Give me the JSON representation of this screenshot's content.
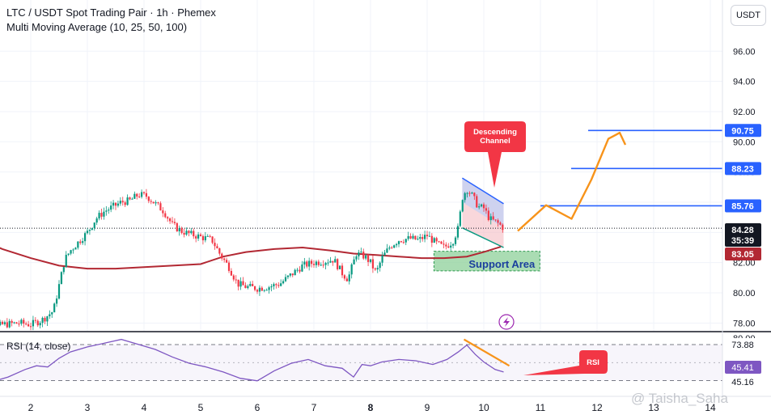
{
  "header": {
    "title": "LTC / USDT Spot Trading Pair · 1h · Phemex",
    "indicator": "Multi Moving Average (10, 25, 50, 100)"
  },
  "currency_button": "USDT",
  "annotations": {
    "descending_channel": "Descending\nChannel",
    "support_area": "Support Area",
    "rsi_callout": "RSI",
    "watermark": "@ Taisha_Saha"
  },
  "price_badges": [
    {
      "value": "90.75",
      "color": "#2962ff"
    },
    {
      "value": "88.23",
      "color": "#2962ff"
    },
    {
      "value": "85.76",
      "color": "#2962ff"
    },
    {
      "value": "84.28",
      "color": "#131722"
    },
    {
      "value": "35:39",
      "color": "#131722"
    },
    {
      "value": "83.05",
      "color": "#b22833"
    }
  ],
  "rsi": {
    "label": "RSI (14, close)",
    "badges": [
      {
        "value": "73.88",
        "color": "#ffffff",
        "text_color": "#131722"
      },
      {
        "value": "45.41",
        "color": "#7e57c2",
        "text_color": "#ffffff"
      },
      {
        "value": "45.16",
        "color": "#ffffff",
        "text_color": "#131722"
      }
    ],
    "cut_tick": "80.00"
  },
  "chart_data": {
    "type": "candlestick",
    "y_ticks": [
      "78.00",
      "80.00",
      "82.00",
      "84.00",
      "86.00",
      "88.00",
      "90.00",
      "92.00",
      "94.00",
      "96.00"
    ],
    "x_ticks": [
      "2",
      "3",
      "4",
      "5",
      "6",
      "7",
      "8",
      "9",
      "10",
      "11",
      "12",
      "13",
      "14"
    ],
    "horizontal_levels": [
      90.75,
      88.23,
      85.76
    ],
    "current_price": 84.28,
    "ma_value": 83.05,
    "price_path": [
      [
        1.0,
        77.7
      ],
      [
        1.3,
        77.6
      ],
      [
        1.5,
        77.9
      ],
      [
        1.8,
        78.0
      ],
      [
        2.0,
        77.9
      ],
      [
        2.2,
        78.2
      ],
      [
        2.4,
        78.8
      ],
      [
        2.5,
        80.5
      ],
      [
        2.6,
        82.2
      ],
      [
        2.7,
        82.8
      ],
      [
        2.85,
        83.4
      ],
      [
        3.0,
        84.0
      ],
      [
        3.15,
        84.9
      ],
      [
        3.3,
        85.4
      ],
      [
        3.45,
        85.7
      ],
      [
        3.6,
        86.0
      ],
      [
        3.75,
        86.1
      ],
      [
        3.9,
        86.5
      ],
      [
        4.05,
        86.4
      ],
      [
        4.2,
        85.9
      ],
      [
        4.35,
        85.4
      ],
      [
        4.5,
        84.5
      ],
      [
        4.65,
        84.1
      ],
      [
        4.8,
        83.9
      ],
      [
        5.0,
        83.7
      ],
      [
        5.2,
        83.5
      ],
      [
        5.35,
        82.5
      ],
      [
        5.5,
        81.7
      ],
      [
        5.65,
        80.6
      ],
      [
        5.8,
        80.4
      ],
      [
        6.0,
        80.3
      ],
      [
        6.2,
        80.4
      ],
      [
        6.4,
        80.6
      ],
      [
        6.6,
        81.2
      ],
      [
        6.8,
        81.8
      ],
      [
        7.0,
        82.0
      ],
      [
        7.2,
        82.1
      ],
      [
        7.35,
        82.2
      ],
      [
        7.5,
        81.3
      ],
      [
        7.6,
        80.9
      ],
      [
        7.75,
        82.6
      ],
      [
        7.9,
        82.4
      ],
      [
        8.0,
        82.0
      ],
      [
        8.1,
        81.3
      ],
      [
        8.2,
        82.3
      ],
      [
        8.35,
        83.1
      ],
      [
        8.5,
        83.5
      ],
      [
        8.7,
        83.6
      ],
      [
        8.85,
        83.5
      ],
      [
        9.0,
        83.8
      ],
      [
        9.15,
        83.3
      ],
      [
        9.3,
        83.0
      ],
      [
        9.45,
        83.4
      ],
      [
        9.55,
        84.3
      ],
      [
        9.62,
        86.3
      ],
      [
        9.7,
        86.9
      ],
      [
        9.8,
        86.4
      ],
      [
        9.9,
        85.7
      ],
      [
        10.0,
        85.6
      ],
      [
        10.1,
        84.9
      ],
      [
        10.25,
        84.6
      ],
      [
        10.35,
        84.3
      ]
    ],
    "ma_path": [
      [
        0.5,
        84.3
      ],
      [
        1.0,
        83.7
      ],
      [
        1.5,
        82.9
      ],
      [
        2.0,
        82.3
      ],
      [
        2.5,
        81.8
      ],
      [
        3.0,
        81.6
      ],
      [
        3.5,
        81.6
      ],
      [
        4.0,
        81.7
      ],
      [
        4.5,
        81.8
      ],
      [
        5.0,
        81.9
      ],
      [
        5.4,
        82.4
      ],
      [
        5.8,
        82.7
      ],
      [
        6.3,
        82.9
      ],
      [
        6.8,
        83.0
      ],
      [
        7.3,
        82.8
      ],
      [
        7.7,
        82.6
      ],
      [
        8.1,
        82.5
      ],
      [
        8.5,
        82.4
      ],
      [
        8.9,
        82.3
      ],
      [
        9.3,
        82.3
      ],
      [
        9.7,
        82.4
      ],
      [
        10.0,
        82.7
      ],
      [
        10.3,
        83.05
      ]
    ],
    "projection_path": [
      [
        10.6,
        84.1
      ],
      [
        11.1,
        85.8
      ],
      [
        11.55,
        84.9
      ],
      [
        11.9,
        87.5
      ],
      [
        12.2,
        90.2
      ],
      [
        12.4,
        90.6
      ],
      [
        12.5,
        89.8
      ]
    ],
    "channel": {
      "upper": [
        [
          9.62,
          87.6
        ],
        [
          10.35,
          85.9
        ]
      ],
      "lower": [
        [
          9.62,
          84.3
        ],
        [
          10.35,
          83.0
        ]
      ]
    },
    "support_area": {
      "x": [
        9.12,
        10.99
      ],
      "y": [
        81.45,
        82.75
      ]
    },
    "rsi_ticks": [
      "73.88",
      "45.41",
      "45.16"
    ],
    "rsi_path": [
      [
        1.0,
        43
      ],
      [
        1.3,
        44
      ],
      [
        1.6,
        48
      ],
      [
        1.9,
        54
      ],
      [
        2.1,
        57
      ],
      [
        2.3,
        56
      ],
      [
        2.5,
        63
      ],
      [
        2.7,
        68
      ],
      [
        3.0,
        72
      ],
      [
        3.3,
        75
      ],
      [
        3.6,
        78
      ],
      [
        3.9,
        74
      ],
      [
        4.2,
        70
      ],
      [
        4.5,
        64
      ],
      [
        4.8,
        59
      ],
      [
        5.1,
        56
      ],
      [
        5.4,
        52
      ],
      [
        5.7,
        47
      ],
      [
        6.0,
        45
      ],
      [
        6.3,
        53
      ],
      [
        6.6,
        59
      ],
      [
        6.9,
        62
      ],
      [
        7.2,
        57
      ],
      [
        7.5,
        55
      ],
      [
        7.7,
        48
      ],
      [
        7.85,
        58
      ],
      [
        8.0,
        57
      ],
      [
        8.2,
        60
      ],
      [
        8.5,
        62
      ],
      [
        8.8,
        61
      ],
      [
        9.1,
        58
      ],
      [
        9.35,
        62
      ],
      [
        9.55,
        68
      ],
      [
        9.7,
        73.5
      ],
      [
        9.85,
        66
      ],
      [
        10.0,
        60
      ],
      [
        10.2,
        54
      ],
      [
        10.35,
        52
      ]
    ],
    "rsi_trend": [
      [
        9.65,
        78
      ],
      [
        10.45,
        57
      ]
    ]
  }
}
